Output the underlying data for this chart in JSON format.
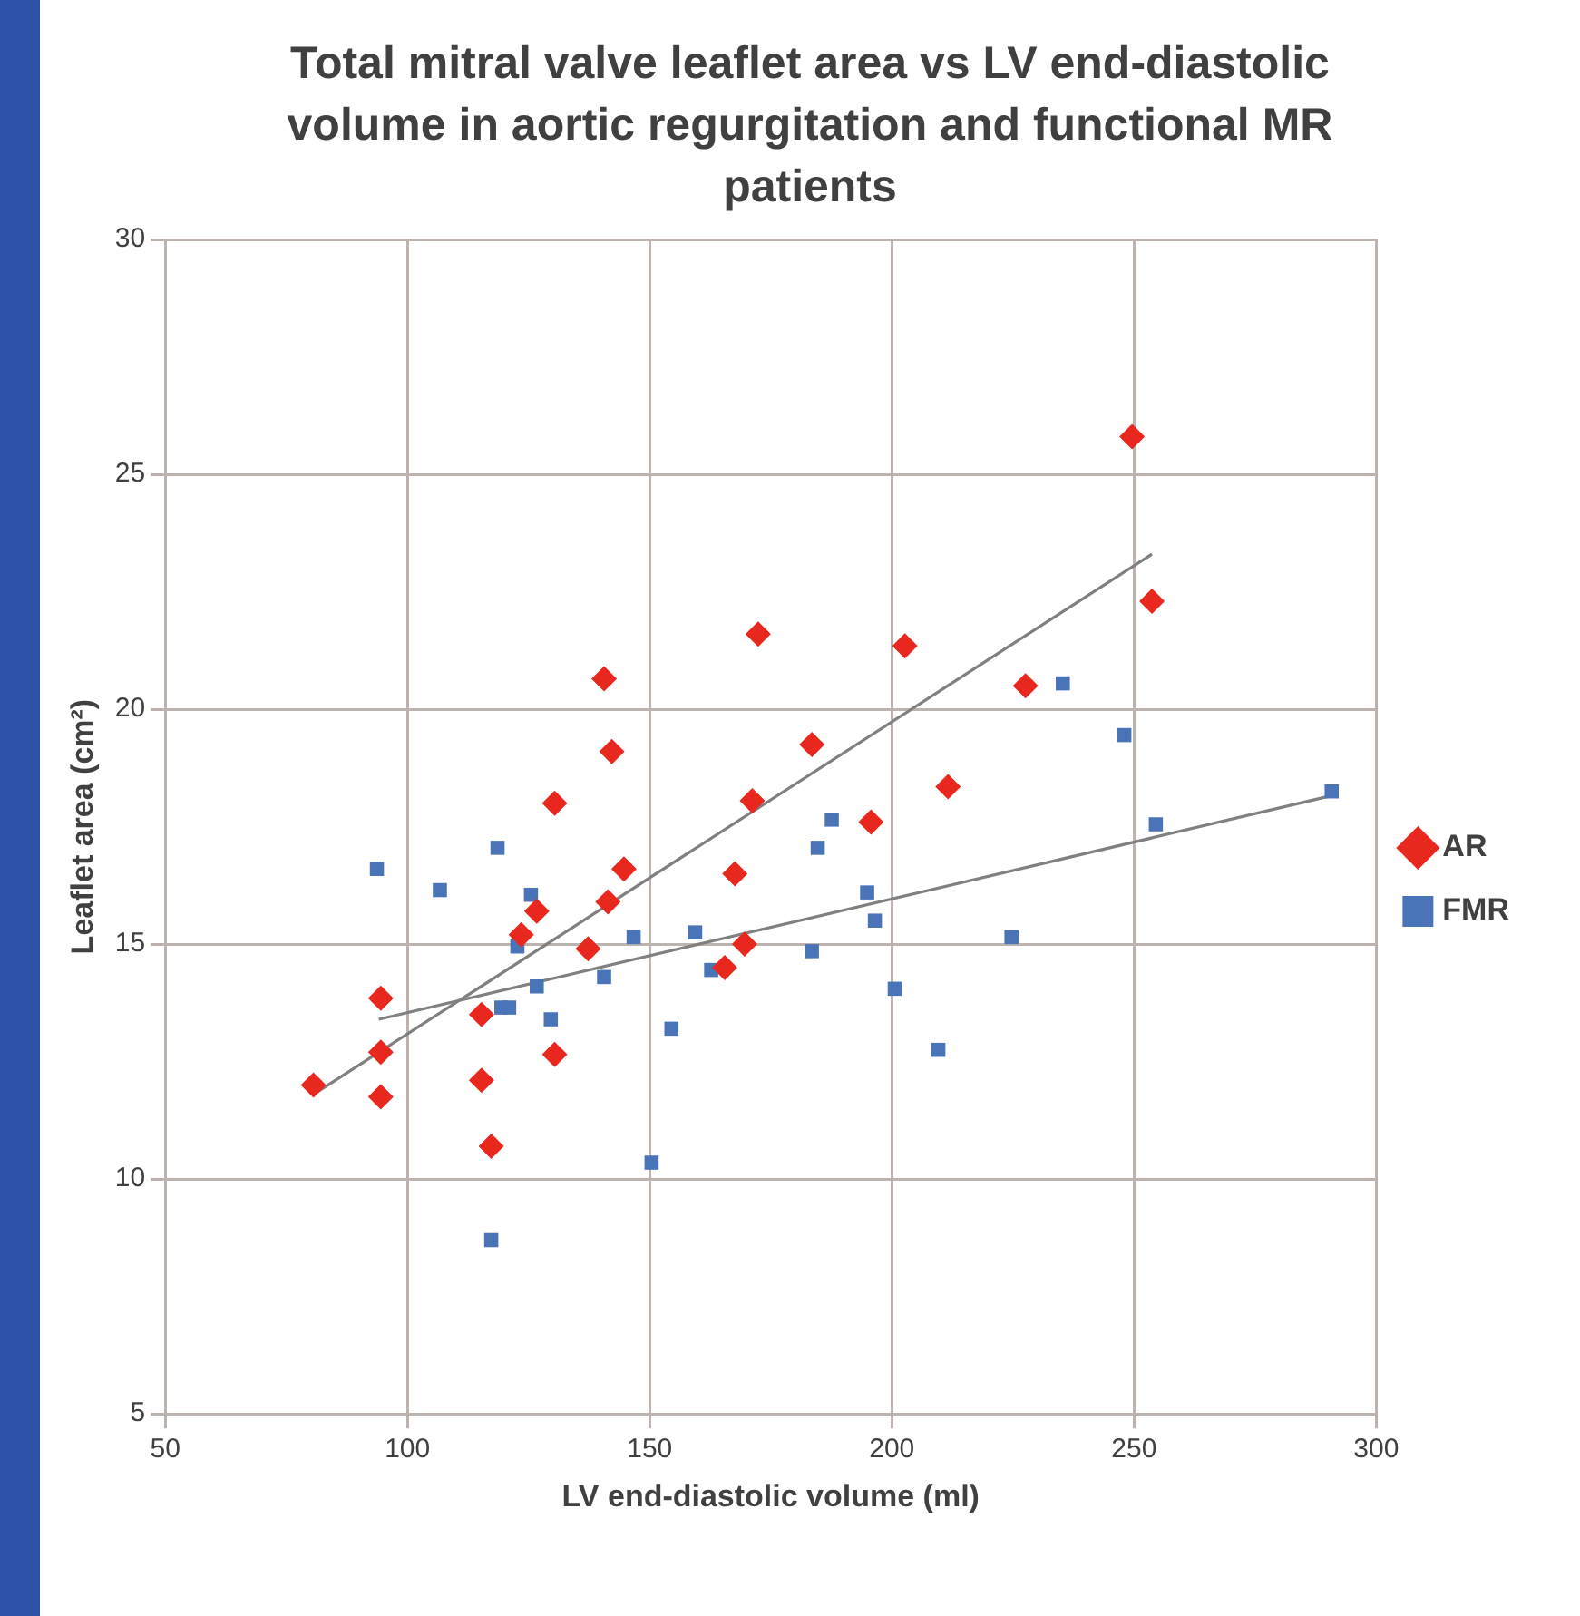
{
  "chart_data": {
    "type": "scatter",
    "title": "Total mitral valve leaflet area vs LV end-diastolic volume in aortic regurgitation and functional MR patients",
    "xlabel": "LV end-diastolic volume (ml)",
    "ylabel": "Leaflet area (cm²)",
    "xlim": [
      50,
      300
    ],
    "xticks": [
      50,
      100,
      150,
      200,
      250,
      300
    ],
    "ylim": [
      5,
      30
    ],
    "yticks": [
      5,
      10,
      15,
      20,
      25,
      30
    ],
    "grid": true,
    "legend": "right",
    "series": [
      {
        "name": "AR",
        "color": "#e8281e",
        "marker": "diamond",
        "x": [
          80.6,
          94.5,
          94.5,
          94.5,
          115.3,
          115.3,
          117.3,
          123.5,
          126.7,
          130.4,
          130.4,
          137.3,
          140.6,
          142.2,
          141.4,
          144.7,
          165.5,
          167.6,
          169.6,
          171.2,
          172.4,
          183.5,
          195.7,
          202.7,
          211.6,
          227.6,
          249.6,
          253.7
        ],
        "values": [
          12.0,
          13.85,
          12.7,
          11.75,
          13.5,
          12.1,
          10.7,
          15.2,
          15.7,
          18.0,
          12.65,
          14.9,
          20.65,
          19.1,
          15.9,
          16.6,
          14.5,
          16.5,
          15.0,
          18.05,
          21.6,
          19.25,
          17.6,
          21.35,
          18.35,
          20.5,
          25.8,
          22.3
        ]
      },
      {
        "name": "FMR",
        "color": "#4a74b8",
        "marker": "square",
        "x": [
          93.7,
          106.7,
          118.6,
          125.5,
          122.7,
          119.4,
          121,
          126.7,
          129.6,
          140.6,
          146.7,
          159.4,
          162.7,
          154.5,
          150.4,
          117.3,
          187.6,
          184.7,
          194.9,
          196.5,
          183.5,
          200.6,
          209.6,
          224.7,
          235.3,
          248,
          254.5,
          290.8
        ],
        "values": [
          16.6,
          16.15,
          17.05,
          16.05,
          14.95,
          13.65,
          13.65,
          14.1,
          13.4,
          14.3,
          15.15,
          15.25,
          14.45,
          13.2,
          10.35,
          8.7,
          17.65,
          17.05,
          16.1,
          15.5,
          14.85,
          14.05,
          12.75,
          15.15,
          20.55,
          19.45,
          17.55,
          18.25
        ]
      },
      {
        "type": "line",
        "color": "#808080",
        "marker": "none",
        "x": [
          80.6,
          253.7
        ],
        "values": [
          11.8,
          23.3
        ]
      },
      {
        "type": "line",
        "color": "#808080",
        "marker": "none",
        "x": [
          94.1,
          290.4
        ],
        "values": [
          13.4,
          18.15
        ]
      }
    ]
  }
}
